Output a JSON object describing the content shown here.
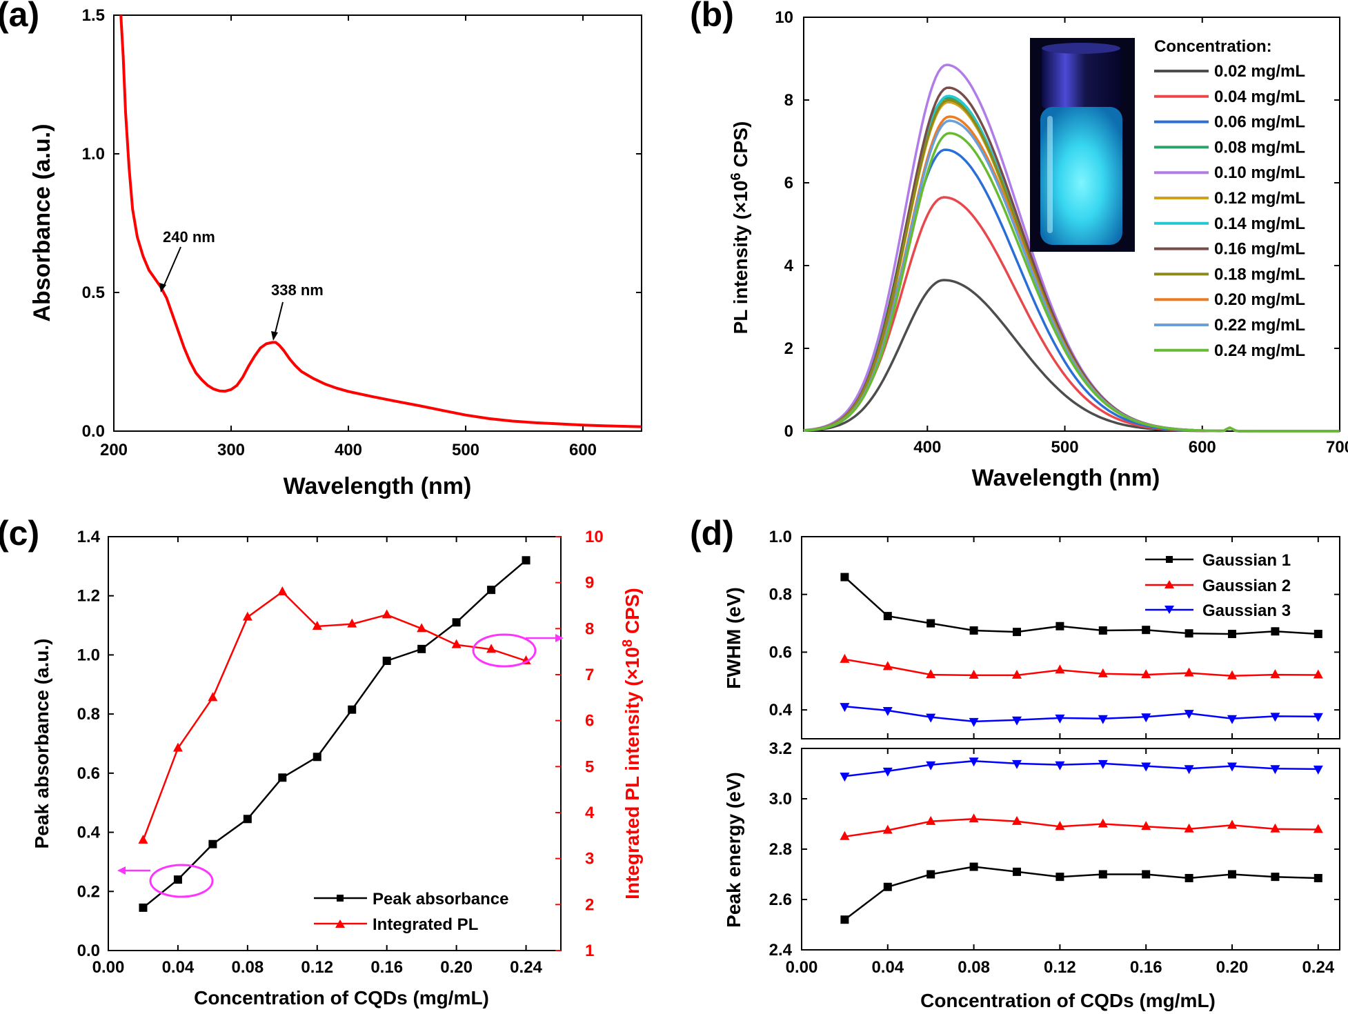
{
  "colors": {
    "red": "#ff0000",
    "black": "#000000",
    "blue": "#0000ff",
    "magenta": "#ff33ff"
  },
  "chart_data": [
    {
      "panel": "(a)",
      "type": "line",
      "xlabel": "Wavelength (nm)",
      "ylabel": "Absorbance (a.u.)",
      "xlim": [
        200,
        650
      ],
      "ylim": [
        0.0,
        1.5
      ],
      "xticks": [
        "200",
        "300",
        "400",
        "500",
        "600"
      ],
      "yticks": [
        "0.0",
        "0.5",
        "1.0",
        "1.5"
      ],
      "series": [
        {
          "name": "absorbance",
          "color": "#ff0000",
          "x": [
            206,
            208,
            210,
            213,
            216,
            220,
            225,
            230,
            235,
            240,
            245,
            250,
            255,
            260,
            265,
            270,
            275,
            280,
            285,
            290,
            295,
            300,
            305,
            310,
            315,
            320,
            325,
            330,
            335,
            338,
            341,
            345,
            350,
            355,
            360,
            370,
            380,
            390,
            400,
            420,
            440,
            460,
            480,
            500,
            520,
            540,
            560,
            580,
            600,
            620,
            640,
            650
          ],
          "y": [
            1.5,
            1.35,
            1.15,
            0.95,
            0.8,
            0.7,
            0.63,
            0.58,
            0.55,
            0.52,
            0.48,
            0.42,
            0.36,
            0.3,
            0.25,
            0.21,
            0.185,
            0.165,
            0.152,
            0.145,
            0.144,
            0.15,
            0.165,
            0.195,
            0.235,
            0.27,
            0.3,
            0.315,
            0.32,
            0.32,
            0.31,
            0.29,
            0.26,
            0.235,
            0.215,
            0.19,
            0.17,
            0.155,
            0.143,
            0.125,
            0.108,
            0.092,
            0.075,
            0.058,
            0.045,
            0.036,
            0.03,
            0.026,
            0.022,
            0.019,
            0.017,
            0.016
          ]
        }
      ],
      "annotations": [
        {
          "text": "240 nm",
          "x": 243,
          "y": 0.5
        },
        {
          "text": "338 nm",
          "x": 338,
          "y": 0.32
        }
      ]
    },
    {
      "panel": "(b)",
      "type": "line",
      "xlabel": "Wavelength (nm)",
      "ylabel_main": "PL intensity (×10",
      "ylabel_sup": "6",
      "ylabel_end": " CPS)",
      "xlim": [
        310,
        700
      ],
      "ylim": [
        0,
        10
      ],
      "xticks": [
        "400",
        "500",
        "600",
        "700"
      ],
      "yticks": [
        "0",
        "2",
        "4",
        "6",
        "8",
        "10"
      ],
      "legend_title": "Concentration:",
      "series": [
        {
          "name": "0.02 mg/mL",
          "color": "#4d4d4d",
          "peak": 3.65,
          "center": 412
        },
        {
          "name": "0.04 mg/mL",
          "color": "#e8474b",
          "peak": 5.65,
          "center": 412
        },
        {
          "name": "0.06 mg/mL",
          "color": "#2b6fd6",
          "peak": 6.8,
          "center": 413
        },
        {
          "name": "0.08 mg/mL",
          "color": "#2aa36b",
          "peak": 8.05,
          "center": 414
        },
        {
          "name": "0.10 mg/mL",
          "color": "#b07ce8",
          "peak": 8.85,
          "center": 414
        },
        {
          "name": "0.12 mg/mL",
          "color": "#d4a017",
          "peak": 7.95,
          "center": 415
        },
        {
          "name": "0.14 mg/mL",
          "color": "#27c7d1",
          "peak": 8.1,
          "center": 415
        },
        {
          "name": "0.16 mg/mL",
          "color": "#7a4b4b",
          "peak": 8.3,
          "center": 415
        },
        {
          "name": "0.18 mg/mL",
          "color": "#8a8a1a",
          "peak": 8.0,
          "center": 415
        },
        {
          "name": "0.20 mg/mL",
          "color": "#f07a20",
          "peak": 7.6,
          "center": 416
        },
        {
          "name": "0.22 mg/mL",
          "color": "#6a9fd8",
          "peak": 7.5,
          "center": 416
        },
        {
          "name": "0.24 mg/mL",
          "color": "#66bb33",
          "peak": 7.2,
          "center": 416
        }
      ]
    },
    {
      "panel": "(c)",
      "type": "line",
      "xlabel": "Concentration of CQDs (mg/mL)",
      "ylabel": "Peak absorbance (a.u.)",
      "y2label_main": "Integrated PL intensity (×10",
      "y2label_sup": "8",
      "y2label_end": " CPS)",
      "xlim": [
        0.0,
        0.26
      ],
      "ylim": [
        0.0,
        1.4
      ],
      "y2lim": [
        1,
        10
      ],
      "xticks": [
        "0.00",
        "0.04",
        "0.08",
        "0.12",
        "0.16",
        "0.20",
        "0.24"
      ],
      "yticks": [
        "0.0",
        "0.2",
        "0.4",
        "0.6",
        "0.8",
        "1.0",
        "1.2",
        "1.4"
      ],
      "y2ticks": [
        "1",
        "2",
        "3",
        "4",
        "5",
        "6",
        "7",
        "8",
        "9",
        "10"
      ],
      "x": [
        0.02,
        0.04,
        0.06,
        0.08,
        0.1,
        0.12,
        0.14,
        0.16,
        0.18,
        0.2,
        0.22,
        0.24
      ],
      "series": [
        {
          "name": "Peak absorbance",
          "color": "#000000",
          "marker": "square",
          "axis": "left",
          "values": [
            0.145,
            0.24,
            0.36,
            0.445,
            0.585,
            0.655,
            0.815,
            0.98,
            1.02,
            1.11,
            1.22,
            1.32
          ]
        },
        {
          "name": "Integrated PL",
          "color": "#ff0000",
          "marker": "triangle-up",
          "axis": "right",
          "values": [
            3.4,
            5.4,
            6.5,
            8.25,
            8.8,
            8.05,
            8.1,
            8.3,
            8.0,
            7.65,
            7.55,
            7.3
          ]
        }
      ]
    },
    {
      "panel": "(d)",
      "type": "line",
      "xlabel": "Concentration of CQDs (mg/mL)",
      "ylabel_top": "FWHM (eV)",
      "ylabel_bottom": "Peak energy (eV)",
      "xlim": [
        0.0,
        0.25
      ],
      "ylim_top": [
        0.3,
        1.0
      ],
      "ylim_bottom": [
        2.4,
        3.2
      ],
      "xticks": [
        "0.00",
        "0.04",
        "0.08",
        "0.12",
        "0.16",
        "0.20",
        "0.24"
      ],
      "yticks_top": [
        "0.4",
        "0.6",
        "0.8",
        "1.0"
      ],
      "yticks_bottom": [
        "2.4",
        "2.6",
        "2.8",
        "3.0",
        "3.2"
      ],
      "x": [
        0.02,
        0.04,
        0.06,
        0.08,
        0.1,
        0.12,
        0.14,
        0.16,
        0.18,
        0.2,
        0.22,
        0.24
      ],
      "series": [
        {
          "name": "Gaussian 1",
          "color": "#000000",
          "marker": "square",
          "fwhm": [
            0.86,
            0.725,
            0.7,
            0.675,
            0.67,
            0.69,
            0.675,
            0.677,
            0.665,
            0.663,
            0.672,
            0.663
          ],
          "energy": [
            2.52,
            2.65,
            2.7,
            2.73,
            2.71,
            2.69,
            2.7,
            2.7,
            2.685,
            2.7,
            2.69,
            2.685
          ]
        },
        {
          "name": "Gaussian 2",
          "color": "#ff0000",
          "marker": "triangle-up",
          "fwhm": [
            0.575,
            0.55,
            0.522,
            0.52,
            0.52,
            0.538,
            0.525,
            0.522,
            0.528,
            0.518,
            0.522,
            0.521
          ],
          "energy": [
            2.85,
            2.875,
            2.91,
            2.92,
            2.91,
            2.89,
            2.9,
            2.89,
            2.88,
            2.895,
            2.88,
            2.878
          ]
        },
        {
          "name": "Gaussian 3",
          "color": "#0000ff",
          "marker": "triangle-down",
          "fwhm": [
            0.412,
            0.398,
            0.375,
            0.36,
            0.365,
            0.372,
            0.37,
            0.376,
            0.388,
            0.37,
            0.378,
            0.377
          ],
          "energy": [
            3.09,
            3.11,
            3.135,
            3.15,
            3.14,
            3.135,
            3.14,
            3.13,
            3.12,
            3.13,
            3.12,
            3.118
          ]
        }
      ]
    }
  ]
}
